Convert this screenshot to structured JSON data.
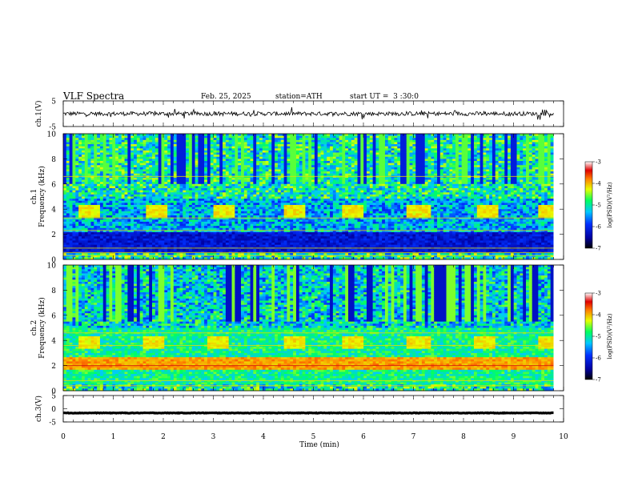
{
  "header": {
    "title": "VLF Spectra",
    "date": "Feb. 25, 2025",
    "station": "station=ATH",
    "start": "start UT =  3 :30:0"
  },
  "chart_data": [
    {
      "type": "line",
      "panel": "ch1-waveform",
      "ylabel": "ch.1(V)",
      "yticks": [
        "5",
        "-5"
      ],
      "ylim": [
        -5,
        5
      ],
      "xlim": [
        0,
        10
      ],
      "series": [
        {
          "mean": 0,
          "amplitude": 0.8
        }
      ],
      "data_end_min": 9.8
    },
    {
      "type": "heatmap",
      "panel": "ch1-spectrogram",
      "ylabel": "ch.1\nFrequency (kHz)",
      "yticks": [
        "10",
        "8",
        "6",
        "4",
        "2",
        "0"
      ],
      "ylim": [
        0,
        10
      ],
      "xlim": [
        0,
        10
      ],
      "colorbar": {
        "label": "log(PSD)(V²/Hz)",
        "ticks": [
          "-3",
          "-4",
          "-5",
          "-6",
          "-7"
        ],
        "range": [
          -7,
          -3
        ]
      },
      "bursts_min": [
        0.5,
        1.85,
        3.2,
        4.6,
        5.8,
        7.1,
        8.5,
        9.7
      ]
    },
    {
      "type": "heatmap",
      "panel": "ch2-spectrogram",
      "ylabel": "ch.2\nFrequency (kHz)",
      "yticks": [
        "10",
        "8",
        "6",
        "4",
        "2",
        "0"
      ],
      "ylim": [
        0,
        10
      ],
      "xlim": [
        0,
        10
      ],
      "colorbar": {
        "label": "log(PSD)(V²/Hz)",
        "ticks": [
          "-3",
          "-4",
          "-5",
          "-6",
          "-7"
        ],
        "range": [
          -7,
          -3
        ]
      },
      "bursts_min": [
        0.5,
        1.8,
        3.1,
        4.6,
        5.8,
        7.1,
        8.4,
        9.7
      ]
    },
    {
      "type": "line",
      "panel": "ch3-waveform",
      "ylabel": "ch.3(V)",
      "yticks": [
        "5",
        "0",
        "-5"
      ],
      "ylim": [
        -5,
        5
      ],
      "xlim": [
        0,
        10
      ],
      "series": [
        {
          "mean": -1.6,
          "amplitude": 0.1
        }
      ],
      "data_end_min": 9.8
    }
  ],
  "xaxis": {
    "xlabel": "Time (min)",
    "ticks": [
      "0",
      "1",
      "2",
      "3",
      "4",
      "5",
      "6",
      "7",
      "8",
      "9",
      "10"
    ]
  },
  "colors": {
    "frame": "#000000",
    "background": "#ffffff"
  }
}
